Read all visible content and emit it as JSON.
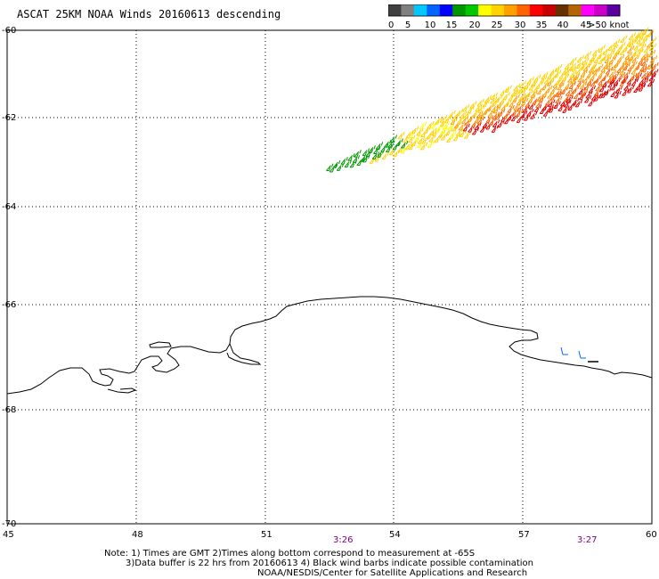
{
  "title": "ASCAT 25KM NOAA Winds 20160613 descending",
  "legend": {
    "colors": [
      "#404040",
      "#808080",
      "#00c8ff",
      "#0064ff",
      "#0000ff",
      "#009600",
      "#00c800",
      "#ffff00",
      "#ffd200",
      "#ffa000",
      "#ff6400",
      "#ff0000",
      "#c80000",
      "#643200",
      "#b46400",
      "#ff00ff",
      "#c800c8",
      "#5a00a0"
    ],
    "labels": [
      "0",
      "5",
      "10",
      "15",
      "20",
      "25",
      "30",
      "35",
      "40",
      "45",
      ">50 knots"
    ]
  },
  "axes": {
    "lon_ticks": [
      "45",
      "48",
      "51",
      "54",
      "57",
      "60"
    ],
    "lat_ticks": [
      "-60",
      "-62",
      "-64",
      "-66",
      "-68",
      "-70"
    ]
  },
  "times": [
    "3:26",
    "3:27"
  ],
  "notes": [
    "Note: 1) Times are GMT 2)Times along bottom correspond to measurement at -65S",
    "3)Data buffer is 22 hrs from 20160613 4) Black wind barbs indicate possible contamination",
    "NOAA/NESDIS/Center for Satellite Applications and Research"
  ]
}
